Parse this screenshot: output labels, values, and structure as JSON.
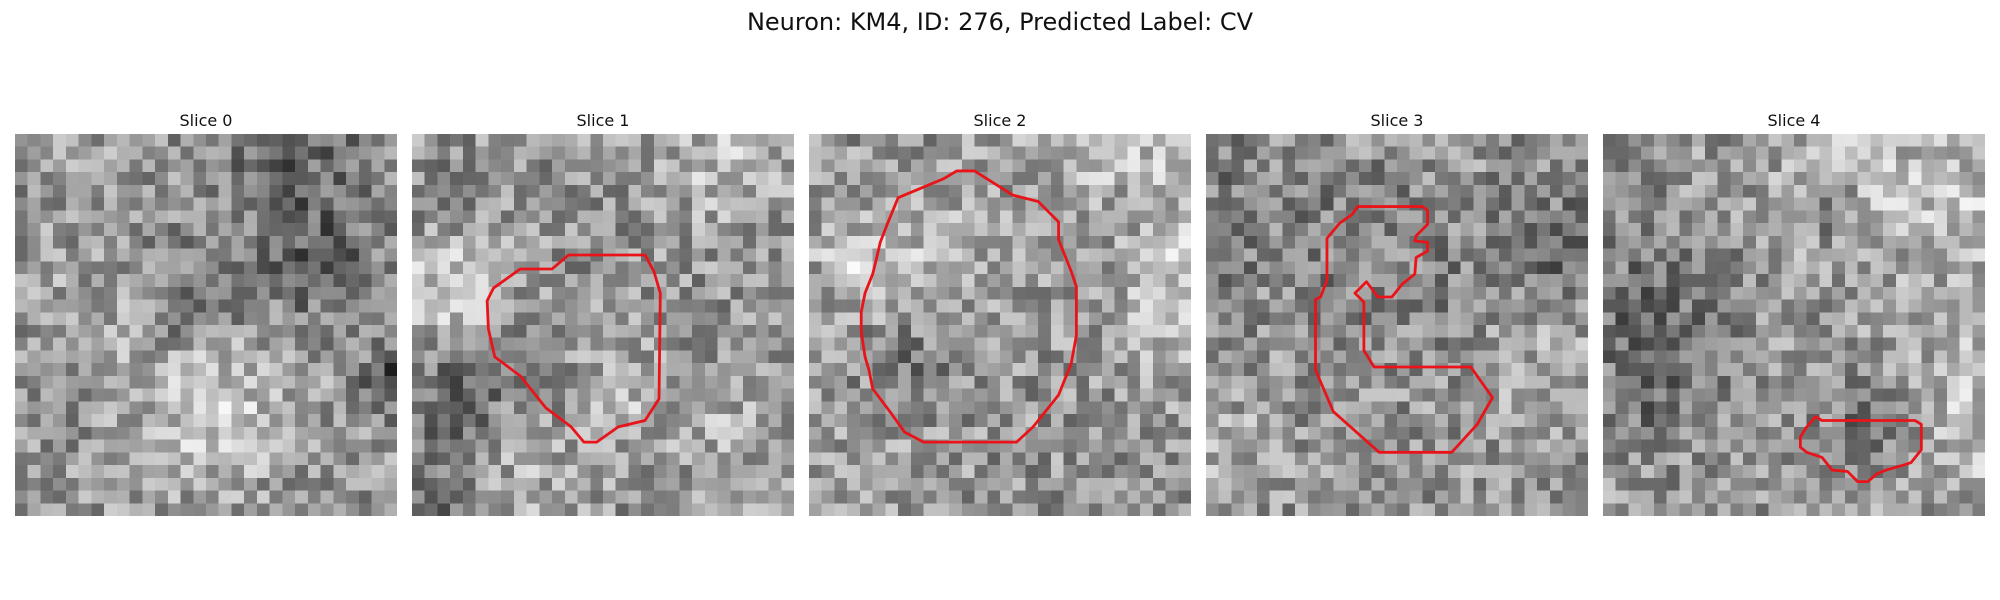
{
  "figure": {
    "title": "Neuron: KM4, ID: 276, Predicted Label: CV"
  },
  "colors": {
    "contour": "#e8141a"
  },
  "grid_size": 30,
  "panels": [
    {
      "title": "Slice 0",
      "seed": 11,
      "contour": []
    },
    {
      "title": "Slice 1",
      "seed": 23,
      "contour": [
        [
          9.6,
          10.6
        ],
        [
          11.0,
          10.6
        ],
        [
          12.3,
          9.5
        ],
        [
          18.3,
          9.5
        ],
        [
          19.0,
          10.8
        ],
        [
          19.5,
          12.5
        ],
        [
          19.4,
          20.8
        ],
        [
          18.3,
          22.5
        ],
        [
          16.2,
          23.0
        ],
        [
          14.5,
          24.2
        ],
        [
          13.5,
          24.2
        ],
        [
          12.5,
          23.0
        ],
        [
          10.5,
          21.5
        ],
        [
          8.5,
          19.0
        ],
        [
          6.5,
          17.5
        ],
        [
          6.0,
          15.3
        ],
        [
          5.9,
          13.1
        ],
        [
          6.4,
          12.1
        ],
        [
          8.5,
          10.6
        ]
      ]
    },
    {
      "title": "Slice 2",
      "seed": 37,
      "contour": [
        [
          7.0,
          5.0
        ],
        [
          9.4,
          4.0
        ],
        [
          10.6,
          3.5
        ],
        [
          11.6,
          2.9
        ],
        [
          13.0,
          2.9
        ],
        [
          16.0,
          4.8
        ],
        [
          18.0,
          5.3
        ],
        [
          19.6,
          6.9
        ],
        [
          19.6,
          8.3
        ],
        [
          20.6,
          10.8
        ],
        [
          21.0,
          12.0
        ],
        [
          21.0,
          15.8
        ],
        [
          20.6,
          18.0
        ],
        [
          19.6,
          20.5
        ],
        [
          17.6,
          23.0
        ],
        [
          16.3,
          24.2
        ],
        [
          9.0,
          24.2
        ],
        [
          7.5,
          23.4
        ],
        [
          6.5,
          22.0
        ],
        [
          5.0,
          20.0
        ],
        [
          4.7,
          18.5
        ],
        [
          4.4,
          17.5
        ],
        [
          4.1,
          15.5
        ],
        [
          4.1,
          14.0
        ],
        [
          4.4,
          12.5
        ],
        [
          5.0,
          11.0
        ],
        [
          5.2,
          10.2
        ],
        [
          5.6,
          8.5
        ],
        [
          6.1,
          7.2
        ]
      ]
    },
    {
      "title": "Slice 3",
      "seed": 53,
      "contour": [
        [
          11.9,
          5.7
        ],
        [
          13.2,
          5.7
        ],
        [
          17.0,
          5.7
        ],
        [
          17.4,
          6.0
        ],
        [
          17.4,
          7.1
        ],
        [
          16.5,
          8.0
        ],
        [
          16.4,
          8.4
        ],
        [
          17.4,
          8.5
        ],
        [
          17.4,
          9.2
        ],
        [
          16.5,
          9.7
        ],
        [
          16.4,
          11.0
        ],
        [
          15.4,
          11.8
        ],
        [
          14.6,
          12.8
        ],
        [
          13.5,
          12.8
        ],
        [
          12.6,
          11.6
        ],
        [
          11.7,
          12.5
        ],
        [
          12.4,
          13.2
        ],
        [
          12.4,
          17.0
        ],
        [
          13.2,
          18.3
        ],
        [
          20.8,
          18.3
        ],
        [
          22.5,
          20.7
        ],
        [
          21.3,
          22.8
        ],
        [
          19.3,
          25.0
        ],
        [
          13.6,
          25.0
        ],
        [
          10.0,
          21.8
        ],
        [
          8.8,
          19.0
        ],
        [
          8.6,
          18.5
        ],
        [
          8.6,
          13.0
        ],
        [
          9.0,
          12.8
        ],
        [
          9.5,
          11.5
        ],
        [
          9.5,
          8.2
        ],
        [
          10.5,
          7.0
        ],
        [
          11.5,
          6.3
        ]
      ]
    },
    {
      "title": "Slice 4",
      "seed": 71,
      "contour": [
        [
          16.7,
          22.2
        ],
        [
          17.2,
          22.5
        ],
        [
          24.5,
          22.5
        ],
        [
          25.0,
          22.8
        ],
        [
          25.0,
          24.8
        ],
        [
          24.2,
          25.8
        ],
        [
          23.6,
          26.0
        ],
        [
          22.2,
          26.4
        ],
        [
          21.5,
          26.7
        ],
        [
          20.8,
          27.3
        ],
        [
          20.0,
          27.3
        ],
        [
          19.2,
          26.5
        ],
        [
          18.0,
          26.4
        ],
        [
          17.2,
          25.4
        ],
        [
          16.0,
          25.0
        ],
        [
          15.5,
          24.6
        ],
        [
          15.5,
          23.8
        ],
        [
          16.0,
          23.0
        ]
      ]
    }
  ]
}
